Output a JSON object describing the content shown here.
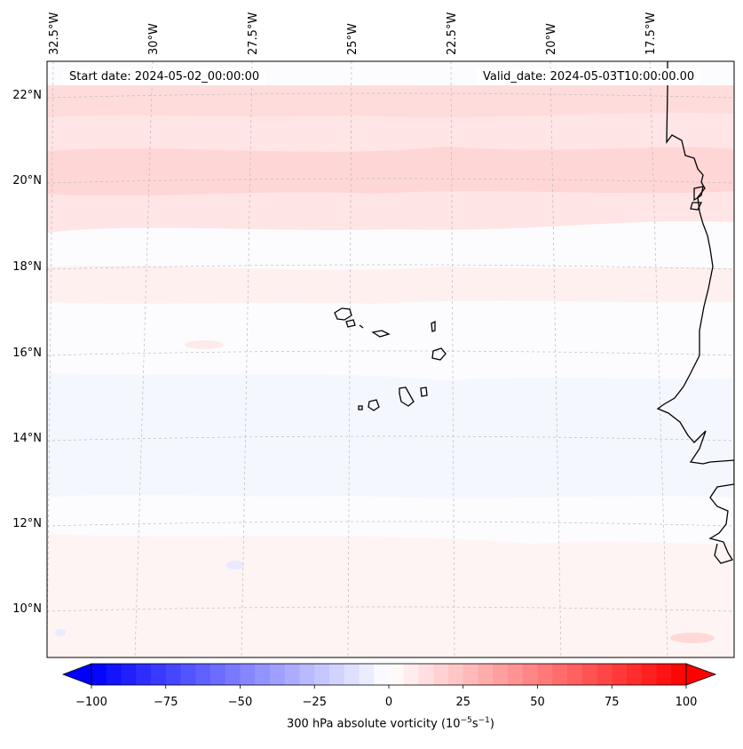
{
  "map": {
    "start_label": "Start date: 2024-05-02_00:00:00",
    "valid_label": "Valid_date: 2024-05-03T10:00:00.00",
    "lon_labels": [
      "32.5°W",
      "30°W",
      "27.5°W",
      "25°W",
      "22.5°W",
      "20°W",
      "17.5°W"
    ],
    "lat_labels": [
      "22°N",
      "20°N",
      "18°N",
      "16°N",
      "14°N",
      "12°N",
      "10°N"
    ],
    "features": [
      "Cape Verde islands",
      "West African coastline"
    ],
    "colors": {
      "negative": "#0000ff",
      "neutral": "#ffffff",
      "positive": "#ff0000",
      "coastline": "#000000",
      "gridline": "#bbbbbb"
    }
  },
  "colorbar": {
    "label_prefix": "300 hPa absolute vorticity (10",
    "label_exp1": "−5",
    "label_mid": "s",
    "label_exp2": "−1",
    "label_suffix": ")",
    "ticks": [
      "−100",
      "−75",
      "−50",
      "−25",
      "0",
      "25",
      "50",
      "75",
      "100"
    ],
    "min": -100,
    "max": 100,
    "levels": 40
  }
}
